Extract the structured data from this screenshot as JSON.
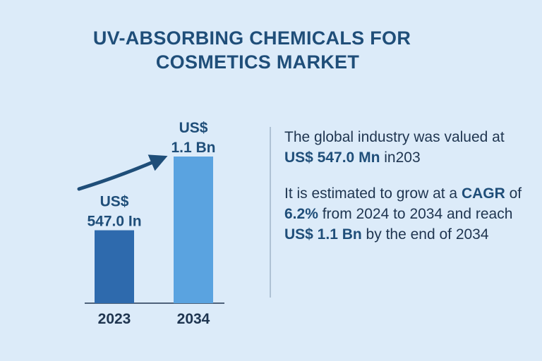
{
  "chart_data": {
    "type": "bar",
    "title": [
      "UV-ABSORBING CHEMICALS FOR",
      "COSMETICS MARKET"
    ],
    "categories": [
      "2023",
      "2034"
    ],
    "values": [
      547.0,
      1100
    ],
    "value_labels": [
      "US$ 547.0 In",
      "US$ 1.1 Bn"
    ],
    "colors": [
      "#2e6aad",
      "#5aa3e0"
    ]
  },
  "text_panel": {
    "paragraphs": [
      [
        "The global industry was valued at ",
        "US$ 547.0 Mn",
        " in203"
      ],
      [
        "It is estimated to grow at a ",
        "CAGR",
        " of ",
        "6.2%",
        " from 2024 to 2034 and reach ",
        "US$ 1.1 Bn",
        " by the end of 2034"
      ]
    ]
  }
}
